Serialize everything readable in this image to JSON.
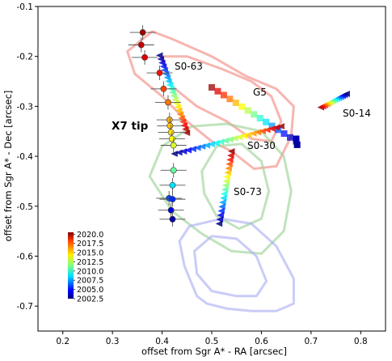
{
  "chart_data": {
    "type": "scatter",
    "xlabel": "offset from Sgr A* - RA  [arcsec]",
    "ylabel": "offset from Sgr A* - Dec [arcsec]",
    "xlim": [
      0.15,
      0.85
    ],
    "ylim": [
      -0.75,
      -0.1
    ],
    "xticks": [
      "0.2",
      "0.3",
      "0.4",
      "0.5",
      "0.6",
      "0.7",
      "0.8"
    ],
    "yticks": [
      "-0.1",
      "-0.2",
      "-0.3",
      "-0.4",
      "-0.5",
      "-0.6",
      "-0.7"
    ],
    "grid": false,
    "colorbar": {
      "position": "lower-left",
      "ticks": [
        "2020.0",
        "2017.5",
        "2015.0",
        "2012.5",
        "2010.0",
        "2007.5",
        "2005.0",
        "2002.5"
      ],
      "range": [
        2002.5,
        2020.5
      ]
    },
    "labels": {
      "x7": "X7 tip",
      "s063": "S0-63",
      "g5": "G5",
      "s014": "S0-14",
      "s030": "S0-30",
      "s073": "S0-73"
    },
    "x7_points": [
      {
        "x": 0.361,
        "y": -0.152,
        "t": 2019.9
      },
      {
        "x": 0.358,
        "y": -0.177,
        "t": 2019.2
      },
      {
        "x": 0.365,
        "y": -0.202,
        "t": 2018.8
      },
      {
        "x": 0.395,
        "y": -0.233,
        "t": 2018.0
      },
      {
        "x": 0.403,
        "y": -0.265,
        "t": 2017.0
      },
      {
        "x": 0.412,
        "y": -0.292,
        "t": 2016.2
      },
      {
        "x": 0.415,
        "y": -0.327,
        "t": 2015.2
      },
      {
        "x": 0.416,
        "y": -0.339,
        "t": 2014.8
      },
      {
        "x": 0.418,
        "y": -0.352,
        "t": 2014.2
      },
      {
        "x": 0.42,
        "y": -0.365,
        "t": 2013.7
      },
      {
        "x": 0.423,
        "y": -0.378,
        "t": 2013.0
      },
      {
        "x": 0.423,
        "y": -0.428,
        "t": 2011.0
      },
      {
        "x": 0.421,
        "y": -0.458,
        "t": 2008.8
      },
      {
        "x": 0.414,
        "y": -0.484,
        "t": 2006.0
      },
      {
        "x": 0.421,
        "y": -0.486,
        "t": 2005.5
      },
      {
        "x": 0.418,
        "y": -0.508,
        "t": 2004.2
      },
      {
        "x": 0.421,
        "y": -0.526,
        "t": 2003.2
      }
    ],
    "star_tracks": [
      {
        "name": "S0-63",
        "marker": "triangle-left",
        "start": [
          0.395,
          -0.198
        ],
        "end": [
          0.45,
          -0.353
        ],
        "t": [
          2002.5,
          2020.0
        ],
        "n": 22
      },
      {
        "name": "S0-30",
        "marker": "triangle-left",
        "start": [
          0.64,
          -0.34
        ],
        "end": [
          0.425,
          -0.395
        ],
        "t": [
          2020.0,
          2002.5
        ],
        "n": 24
      },
      {
        "name": "S0-73",
        "marker": "triangle-left",
        "start": [
          0.54,
          -0.39
        ],
        "end": [
          0.515,
          -0.535
        ],
        "t": [
          2020.0,
          2002.5
        ],
        "n": 18
      },
      {
        "name": "S0-14",
        "marker": "triangle-left",
        "start": [
          0.72,
          -0.302
        ],
        "end": [
          0.772,
          -0.275
        ],
        "t": [
          2020.0,
          2002.5
        ],
        "n": 14
      }
    ],
    "gas_tracks": [
      {
        "name": "G5",
        "marker": "square",
        "start": [
          0.5,
          -0.262
        ],
        "end": [
          0.67,
          -0.37
        ],
        "t": [
          2020.0,
          2002.5
        ],
        "n": 15
      }
    ],
    "extra_squares": [
      {
        "x": 0.67,
        "y": -0.365,
        "t": 2003.5
      },
      {
        "x": 0.672,
        "y": -0.377,
        "t": 2003.0
      }
    ],
    "contours": [
      {
        "color": "#f28e86",
        "points": [
          [
            0.33,
            -0.19
          ],
          [
            0.38,
            -0.15
          ],
          [
            0.42,
            -0.165
          ],
          [
            0.5,
            -0.2
          ],
          [
            0.57,
            -0.24
          ],
          [
            0.63,
            -0.265
          ],
          [
            0.665,
            -0.3
          ],
          [
            0.66,
            -0.36
          ],
          [
            0.63,
            -0.42
          ],
          [
            0.585,
            -0.425
          ],
          [
            0.54,
            -0.39
          ],
          [
            0.5,
            -0.37
          ],
          [
            0.45,
            -0.33
          ],
          [
            0.4,
            -0.28
          ],
          [
            0.345,
            -0.235
          ]
        ]
      },
      {
        "color": "#f28e86",
        "points": [
          [
            0.4,
            -0.2
          ],
          [
            0.45,
            -0.2
          ],
          [
            0.52,
            -0.225
          ],
          [
            0.58,
            -0.25
          ],
          [
            0.62,
            -0.28
          ],
          [
            0.64,
            -0.33
          ],
          [
            0.62,
            -0.37
          ],
          [
            0.58,
            -0.365
          ],
          [
            0.53,
            -0.33
          ],
          [
            0.47,
            -0.3
          ],
          [
            0.42,
            -0.26
          ]
        ]
      },
      {
        "color": "#9ed49a",
        "points": [
          [
            0.375,
            -0.44
          ],
          [
            0.4,
            -0.38
          ],
          [
            0.46,
            -0.34
          ],
          [
            0.53,
            -0.335
          ],
          [
            0.6,
            -0.35
          ],
          [
            0.645,
            -0.4
          ],
          [
            0.66,
            -0.47
          ],
          [
            0.645,
            -0.55
          ],
          [
            0.6,
            -0.595
          ],
          [
            0.54,
            -0.59
          ],
          [
            0.48,
            -0.555
          ],
          [
            0.42,
            -0.51
          ]
        ]
      },
      {
        "color": "#9ed49a",
        "points": [
          [
            0.48,
            -0.43
          ],
          [
            0.51,
            -0.38
          ],
          [
            0.56,
            -0.375
          ],
          [
            0.6,
            -0.41
          ],
          [
            0.615,
            -0.47
          ],
          [
            0.6,
            -0.525
          ],
          [
            0.555,
            -0.545
          ],
          [
            0.51,
            -0.52
          ],
          [
            0.485,
            -0.475
          ]
        ]
      },
      {
        "color": "#aeb0f2",
        "points": [
          [
            0.455,
            -0.54
          ],
          [
            0.52,
            -0.525
          ],
          [
            0.58,
            -0.535
          ],
          [
            0.63,
            -0.58
          ],
          [
            0.665,
            -0.645
          ],
          [
            0.665,
            -0.695
          ],
          [
            0.63,
            -0.71
          ],
          [
            0.58,
            -0.71
          ],
          [
            0.53,
            -0.705
          ],
          [
            0.49,
            -0.695
          ],
          [
            0.47,
            -0.68
          ],
          [
            0.445,
            -0.62
          ],
          [
            0.435,
            -0.57
          ]
        ]
      },
      {
        "color": "#aeb0f2",
        "points": [
          [
            0.465,
            -0.59
          ],
          [
            0.5,
            -0.56
          ],
          [
            0.55,
            -0.565
          ],
          [
            0.59,
            -0.6
          ],
          [
            0.61,
            -0.65
          ],
          [
            0.59,
            -0.68
          ],
          [
            0.55,
            -0.68
          ],
          [
            0.5,
            -0.67
          ],
          [
            0.47,
            -0.635
          ]
        ]
      }
    ]
  }
}
